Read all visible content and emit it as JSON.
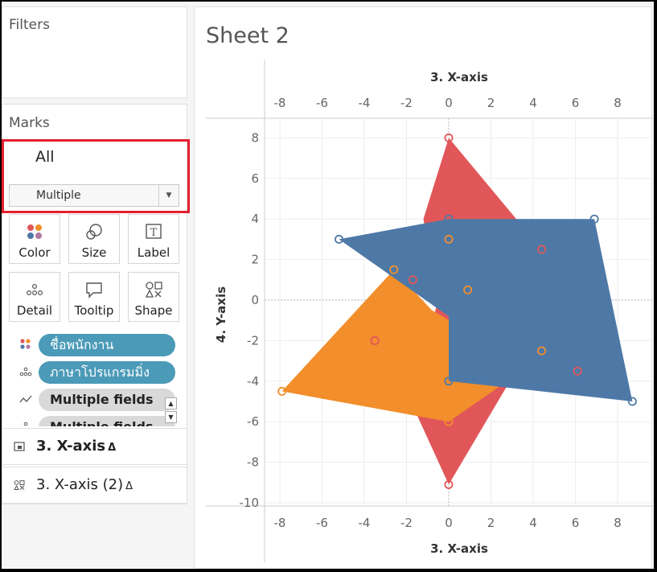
{
  "filters": {
    "title": "Filters"
  },
  "marks": {
    "title": "Marks",
    "selected_card": "All",
    "mark_type": "Multiple",
    "buttons": [
      {
        "label": "Color",
        "icon": "color-dots-icon"
      },
      {
        "label": "Size",
        "icon": "size-circles-icon"
      },
      {
        "label": "Label",
        "icon": "label-t-icon"
      },
      {
        "label": "Detail",
        "icon": "detail-dots-icon"
      },
      {
        "label": "Tooltip",
        "icon": "tooltip-bubble-icon"
      },
      {
        "label": "Shape",
        "icon": "shape-icon"
      }
    ],
    "pills": [
      {
        "label": "ชื่อพนักงาน",
        "icon": "color-dots-icon"
      },
      {
        "label": "ภาษาโปรแกรมมิ่ง",
        "icon": "detail-dots-icon"
      },
      {
        "label": "Multiple fields",
        "icon": "path-icon"
      },
      {
        "label": "Multiple fields",
        "icon": "detail-dots-icon"
      }
    ]
  },
  "fields": [
    {
      "label": "3. X-axis",
      "delta": "Δ",
      "icon": "polygon-mark-icon"
    },
    {
      "label": "3. X-axis (2)",
      "delta": "Δ",
      "icon": "shape-mark-icon"
    }
  ],
  "sheet": {
    "title": "Sheet 2"
  },
  "chart_data": {
    "type": "scatter",
    "xlabel": "3. X-axis",
    "ylabel": "4. Y-axis",
    "xlim": [
      -8.5,
      9
    ],
    "ylim": [
      -10.3,
      9
    ],
    "x_ticks": [
      -8,
      -6,
      -4,
      -2,
      0,
      2,
      4,
      6,
      8
    ],
    "y_ticks": [
      8,
      6,
      4,
      2,
      0,
      -2,
      -4,
      -6,
      -8,
      -10
    ],
    "grid": true,
    "polygons": [
      {
        "color": "#e15759",
        "points": [
          [
            0,
            8
          ],
          [
            3.2,
            4
          ],
          [
            4.6,
            -1
          ],
          [
            0,
            -9.1
          ],
          [
            -1.8,
            -5
          ],
          [
            -0.5,
            0
          ],
          [
            -1.2,
            4
          ]
        ]
      },
      {
        "color": "#f28e2b",
        "points": [
          [
            -7.9,
            -4.5
          ],
          [
            -2.6,
            1.5
          ],
          [
            -0.8,
            -0.5
          ],
          [
            2.5,
            -2.5
          ],
          [
            2.5,
            -4.2
          ],
          [
            0,
            -6
          ]
        ]
      },
      {
        "color": "#4e79a7",
        "points": [
          [
            -5.2,
            3
          ],
          [
            0,
            4
          ],
          [
            6.9,
            4
          ],
          [
            8.7,
            -5
          ],
          [
            0,
            -4
          ],
          [
            0,
            -0.8
          ]
        ]
      }
    ],
    "points": [
      {
        "x": 0,
        "y": 8,
        "color": "#e15759"
      },
      {
        "x": 4.4,
        "y": 2.5,
        "color": "#e15759"
      },
      {
        "x": -1.7,
        "y": 1,
        "color": "#e15759"
      },
      {
        "x": -3.5,
        "y": -2,
        "color": "#e15759"
      },
      {
        "x": 6.1,
        "y": -3.5,
        "color": "#e15759"
      },
      {
        "x": 0,
        "y": -9.1,
        "color": "#e15759"
      },
      {
        "x": 0,
        "y": 3,
        "color": "#f28e2b"
      },
      {
        "x": -2.6,
        "y": 1.5,
        "color": "#f28e2b"
      },
      {
        "x": 0.9,
        "y": 0.5,
        "color": "#f28e2b"
      },
      {
        "x": 4.4,
        "y": -2.5,
        "color": "#f28e2b"
      },
      {
        "x": 0,
        "y": -6,
        "color": "#f28e2b"
      },
      {
        "x": -7.9,
        "y": -4.5,
        "color": "#f28e2b"
      },
      {
        "x": -5.2,
        "y": 3,
        "color": "#4e79a7"
      },
      {
        "x": 0,
        "y": 4,
        "color": "#4e79a7"
      },
      {
        "x": 6.9,
        "y": 4,
        "color": "#4e79a7"
      },
      {
        "x": 8.7,
        "y": -5,
        "color": "#4e79a7"
      },
      {
        "x": 0,
        "y": -4,
        "color": "#4e79a7"
      }
    ]
  }
}
